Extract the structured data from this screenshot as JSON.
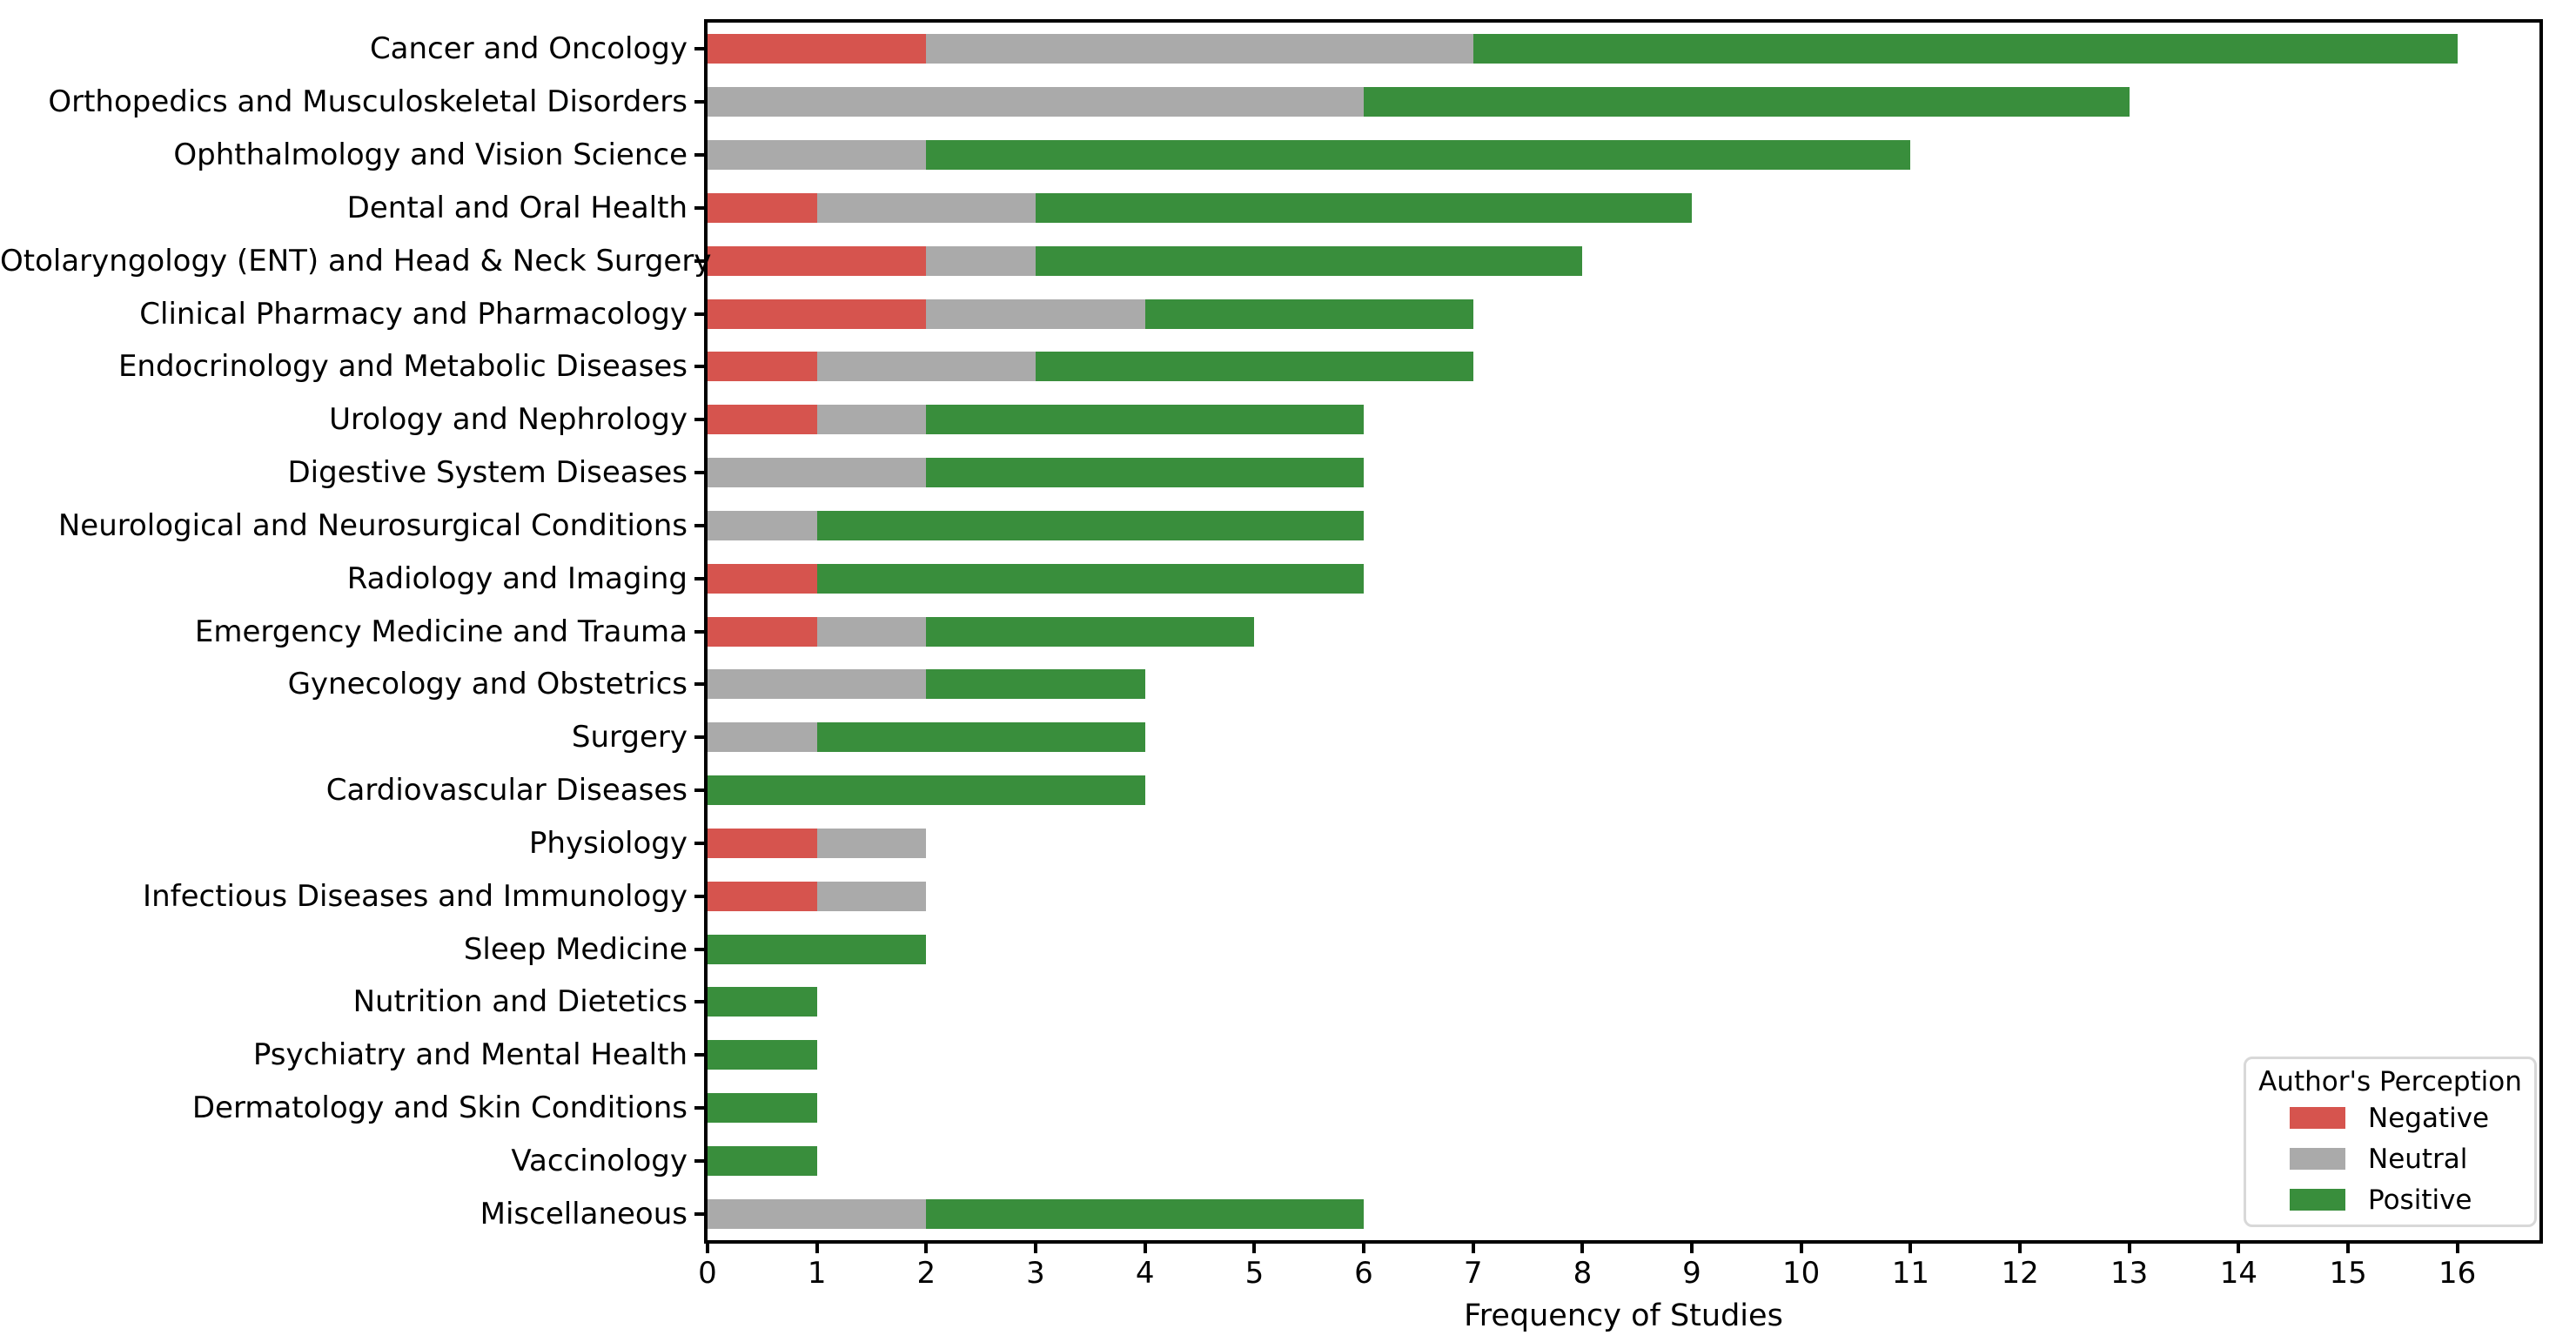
{
  "chart_data": {
    "type": "bar",
    "orientation": "horizontal",
    "stacked": true,
    "title": "",
    "xlabel": "Frequency of Studies",
    "ylabel": "",
    "xlim": [
      0,
      16.75
    ],
    "xticks": [
      0,
      1,
      2,
      3,
      4,
      5,
      6,
      7,
      8,
      9,
      10,
      11,
      12,
      13,
      14,
      15,
      16
    ],
    "grid": false,
    "legend": {
      "title": "Author's Perception",
      "position": "lower right",
      "entries": [
        "Negative",
        "Neutral",
        "Positive"
      ]
    },
    "categories": [
      "Cancer and Oncology",
      "Orthopedics and Musculoskeletal Disorders",
      "Ophthalmology and Vision Science",
      "Dental and Oral Health",
      "Otolaryngology (ENT) and Head & Neck Surgery",
      "Clinical Pharmacy and Pharmacology",
      "Endocrinology and Metabolic Diseases",
      "Urology and Nephrology",
      "Digestive System Diseases",
      "Neurological and Neurosurgical Conditions",
      "Radiology and Imaging",
      "Emergency Medicine and Trauma",
      "Gynecology and Obstetrics",
      "Surgery",
      "Cardiovascular Diseases",
      "Physiology",
      "Infectious Diseases and Immunology",
      "Sleep Medicine",
      "Nutrition and Dietetics",
      "Psychiatry and Mental Health",
      "Dermatology and Skin Conditions",
      "Vaccinology",
      "Miscellaneous"
    ],
    "series": [
      {
        "name": "Negative",
        "color": "#d6544e",
        "values": [
          2,
          0,
          0,
          1,
          2,
          2,
          1,
          1,
          0,
          0,
          1,
          1,
          0,
          0,
          0,
          1,
          1,
          0,
          0,
          0,
          0,
          0,
          0
        ]
      },
      {
        "name": "Neutral",
        "color": "#aaaaaa",
        "values": [
          5,
          6,
          2,
          2,
          1,
          2,
          2,
          1,
          2,
          1,
          0,
          1,
          2,
          1,
          0,
          1,
          1,
          0,
          0,
          0,
          0,
          0,
          2
        ]
      },
      {
        "name": "Positive",
        "color": "#398e3c",
        "values": [
          9,
          7,
          9,
          6,
          5,
          3,
          4,
          4,
          4,
          5,
          5,
          3,
          2,
          3,
          4,
          0,
          0,
          2,
          1,
          1,
          1,
          1,
          4
        ]
      }
    ],
    "colors": {
      "negative": "#d6544e",
      "neutral": "#aaaaaa",
      "positive": "#398e3c",
      "axis": "#000000",
      "legend_border": "#d8d8d8"
    }
  }
}
